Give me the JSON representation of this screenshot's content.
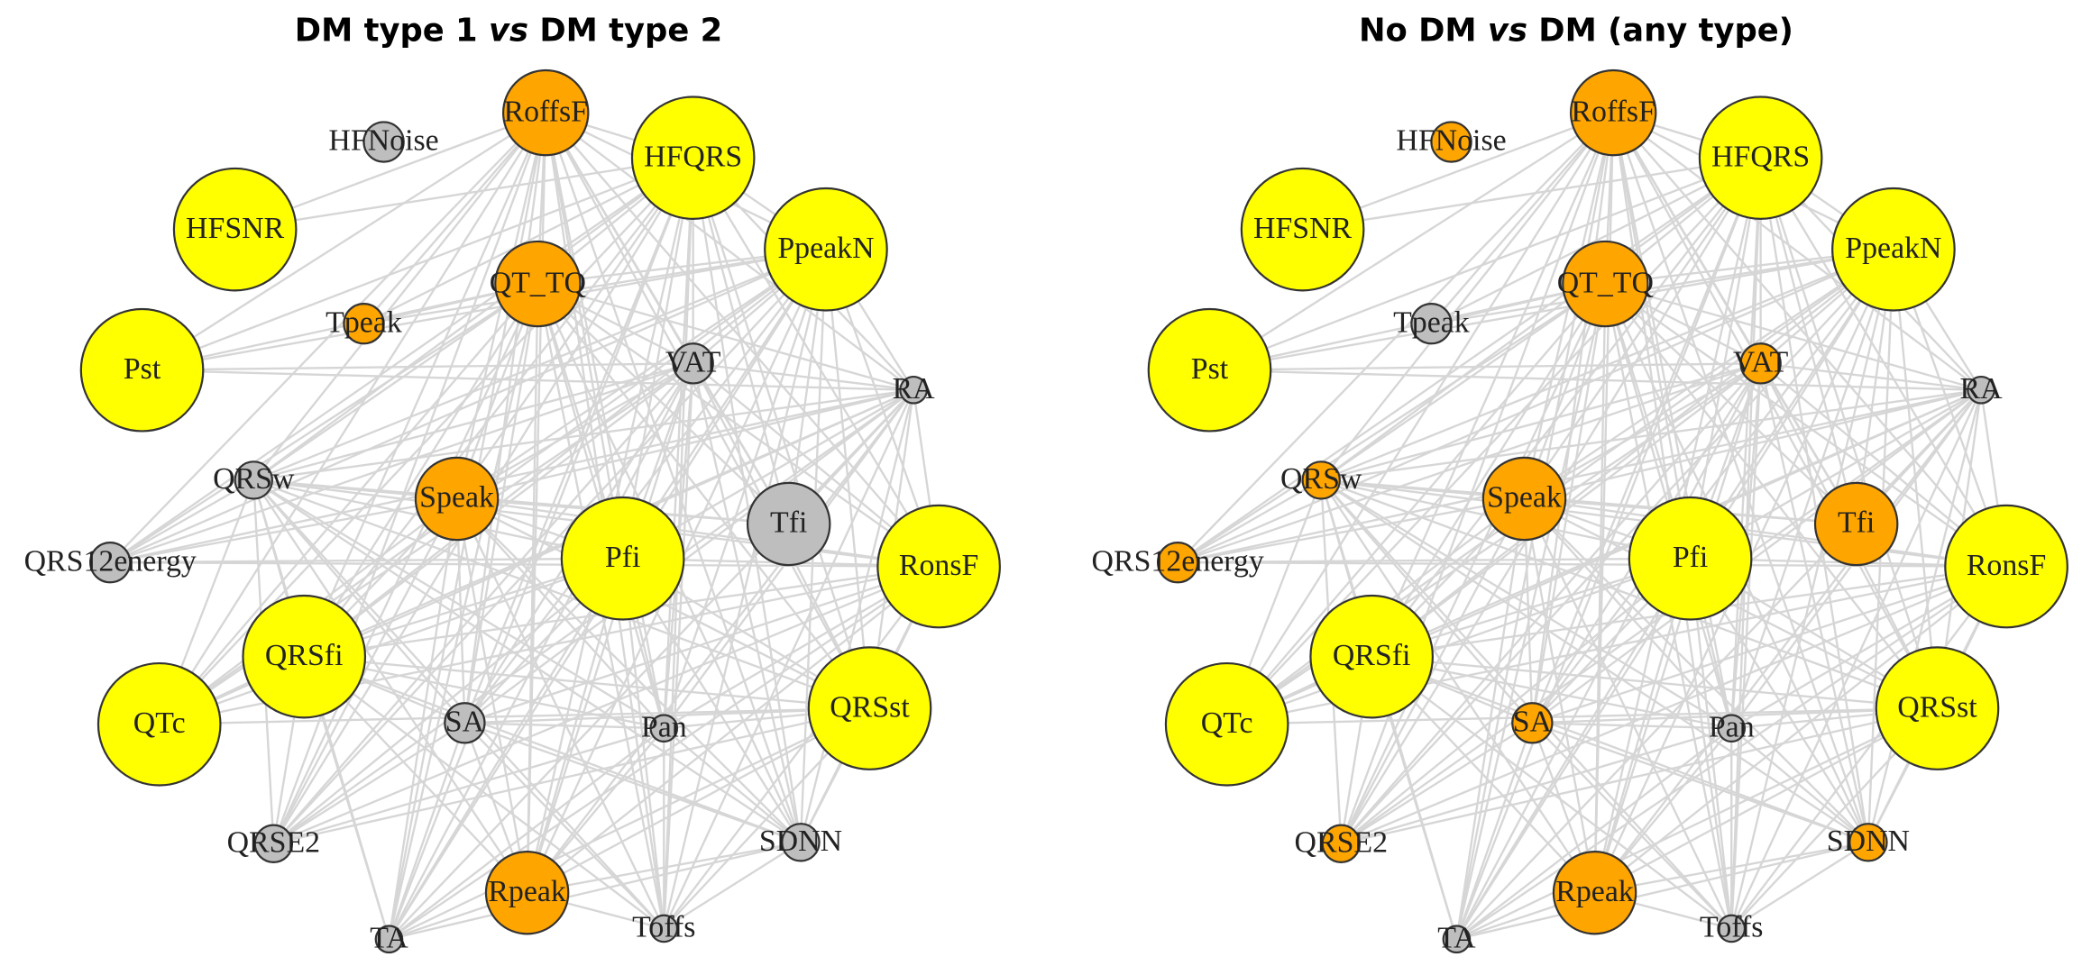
{
  "panels": [
    {
      "title": {
        "before": "DM type 1",
        "vs": "vs",
        "after": "DM type 2"
      },
      "nodes": [
        {
          "label": "HFNoise",
          "color": "#bebebe"
        },
        {
          "label": "RoffsF",
          "color": "#ffa500"
        },
        {
          "label": "HFQRS",
          "color": "#ffff00"
        },
        {
          "label": "HFSNR",
          "color": "#ffff00"
        },
        {
          "label": "PpeakN",
          "color": "#ffff00"
        },
        {
          "label": "QT_TQ",
          "color": "#ffa500"
        },
        {
          "label": "Tpeak",
          "color": "#ffa500"
        },
        {
          "label": "VAT",
          "color": "#bebebe"
        },
        {
          "label": "RA",
          "color": "#bebebe"
        },
        {
          "label": "Pst",
          "color": "#ffff00"
        },
        {
          "label": "QRSw",
          "color": "#bebebe"
        },
        {
          "label": "Speak",
          "color": "#ffa500"
        },
        {
          "label": "Tfi",
          "color": "#bebebe"
        },
        {
          "label": "Pfi",
          "color": "#ffff00"
        },
        {
          "label": "RonsF",
          "color": "#ffff00"
        },
        {
          "label": "QRS12energy",
          "color": "#bebebe"
        },
        {
          "label": "QRSfi",
          "color": "#ffff00"
        },
        {
          "label": "QRSst",
          "color": "#ffff00"
        },
        {
          "label": "QTc",
          "color": "#ffff00"
        },
        {
          "label": "SA",
          "color": "#bebebe"
        },
        {
          "label": "Pan",
          "color": "#bebebe"
        },
        {
          "label": "QRSE2",
          "color": "#bebebe"
        },
        {
          "label": "SDNN",
          "color": "#bebebe"
        },
        {
          "label": "Rpeak",
          "color": "#ffa500"
        },
        {
          "label": "Toffs",
          "color": "#bebebe"
        },
        {
          "label": "TA",
          "color": "#bebebe"
        }
      ]
    },
    {
      "title": {
        "before": "No DM",
        "vs": "vs",
        "after": "DM (any type)"
      },
      "nodes": [
        {
          "label": "HFNoise",
          "color": "#ffa500"
        },
        {
          "label": "RoffsF",
          "color": "#ffa500"
        },
        {
          "label": "HFQRS",
          "color": "#ffff00"
        },
        {
          "label": "HFSNR",
          "color": "#ffff00"
        },
        {
          "label": "PpeakN",
          "color": "#ffff00"
        },
        {
          "label": "QT_TQ",
          "color": "#ffa500"
        },
        {
          "label": "Tpeak",
          "color": "#bebebe"
        },
        {
          "label": "VAT",
          "color": "#ffa500"
        },
        {
          "label": "RA",
          "color": "#bebebe"
        },
        {
          "label": "Pst",
          "color": "#ffff00"
        },
        {
          "label": "QRSw",
          "color": "#ffa500"
        },
        {
          "label": "Speak",
          "color": "#ffa500"
        },
        {
          "label": "Tfi",
          "color": "#ffa500"
        },
        {
          "label": "Pfi",
          "color": "#ffff00"
        },
        {
          "label": "RonsF",
          "color": "#ffff00"
        },
        {
          "label": "QRS12energy",
          "color": "#ffa500"
        },
        {
          "label": "QRSfi",
          "color": "#ffff00"
        },
        {
          "label": "QRSst",
          "color": "#ffff00"
        },
        {
          "label": "QTc",
          "color": "#ffff00"
        },
        {
          "label": "SA",
          "color": "#ffa500"
        },
        {
          "label": "Pan",
          "color": "#bebebe"
        },
        {
          "label": "QRSE2",
          "color": "#ffa500"
        },
        {
          "label": "SDNN",
          "color": "#ffa500"
        },
        {
          "label": "Rpeak",
          "color": "#ffa500"
        },
        {
          "label": "Toffs",
          "color": "#bebebe"
        },
        {
          "label": "TA",
          "color": "#bebebe"
        }
      ]
    }
  ]
}
